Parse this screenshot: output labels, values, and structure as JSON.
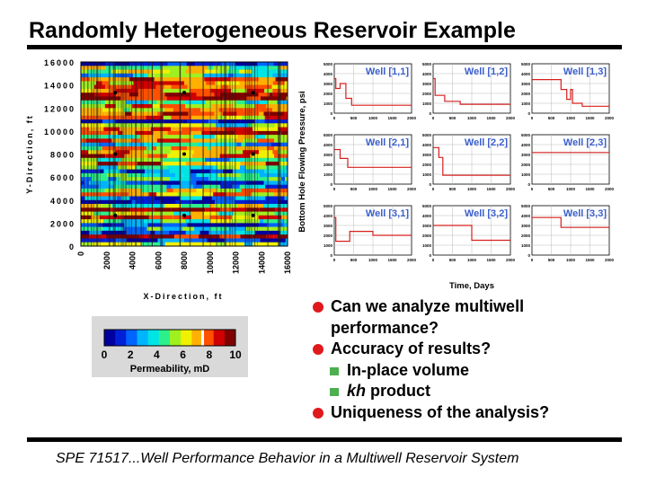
{
  "title": "Randomly Heterogeneous Reservoir Example",
  "footer": "SPE 71517...Well Performance Behavior in a Multiwell Reservoir System",
  "bullets": [
    {
      "lines": [
        "Can we analyze multiwell",
        "performance?"
      ]
    },
    {
      "lines": [
        "Accuracy of results?"
      ]
    },
    {
      "sub": "In-place volume"
    },
    {
      "sub_italic": "kh",
      "sub_rest": " product"
    },
    {
      "lines": [
        "Uniqueness of the analysis?"
      ]
    }
  ],
  "colors": {
    "bullet": "#e0191d",
    "sub_bullet": "#4caf50",
    "curve": "#d6201f"
  },
  "chart_data": [
    {
      "type": "heatmap",
      "xlabel": "X-Direction, ft",
      "ylabel": "Y-Direction, ft",
      "xlim": [
        0,
        16000
      ],
      "ylim": [
        0,
        16000
      ],
      "xticks": [
        "0",
        "2000",
        "4000",
        "6000",
        "8000",
        "10000",
        "12000",
        "14000",
        "16000"
      ],
      "yticks": [
        "0",
        "2000",
        "4000",
        "6000",
        "8000",
        "10000",
        "12000",
        "14000",
        "16000"
      ],
      "colorbar": {
        "label": "Permeability, mD",
        "min": 0,
        "max": 10,
        "ticks": [
          "0",
          "2",
          "4",
          "6",
          "8",
          "10"
        ]
      },
      "wells": [
        {
          "x": 2667,
          "y": 13333
        },
        {
          "x": 8000,
          "y": 13333
        },
        {
          "x": 13333,
          "y": 13333
        },
        {
          "x": 2667,
          "y": 8000
        },
        {
          "x": 8000,
          "y": 8000
        },
        {
          "x": 13333,
          "y": 8000
        },
        {
          "x": 2667,
          "y": 2667
        },
        {
          "x": 8000,
          "y": 2667
        },
        {
          "x": 13333,
          "y": 2667
        }
      ]
    },
    {
      "type": "line",
      "xlabel": "Time, Days",
      "ylabel": "Bottom Hole Flowing Pressure, psi",
      "xlim": [
        0,
        2000
      ],
      "ylim": [
        0,
        5000
      ],
      "xticks": [
        "0",
        "500",
        "1000",
        "1500",
        "2000"
      ],
      "yticks": [
        "0",
        "1000",
        "2000",
        "3000",
        "4000",
        "5000"
      ],
      "panels": [
        {
          "name": "Well [1,1]",
          "x": [
            0,
            40,
            40,
            150,
            150,
            300,
            300,
            450,
            450,
            2000
          ],
          "y": [
            3500,
            3500,
            2500,
            2500,
            3000,
            3000,
            1500,
            1500,
            800,
            800
          ]
        },
        {
          "name": "Well [1,2]",
          "x": [
            0,
            50,
            50,
            300,
            300,
            700,
            700,
            2000
          ],
          "y": [
            3500,
            3500,
            1800,
            1800,
            1200,
            1200,
            900,
            900
          ]
        },
        {
          "name": "Well [1,3]",
          "x": [
            0,
            750,
            750,
            900,
            900,
            1000,
            1000,
            1050,
            1050,
            1300,
            1300,
            2000
          ],
          "y": [
            3400,
            3400,
            2400,
            2400,
            1400,
            1400,
            2400,
            2400,
            1000,
            1000,
            700,
            700
          ]
        },
        {
          "name": "Well [2,1]",
          "x": [
            0,
            150,
            150,
            350,
            350,
            2000
          ],
          "y": [
            3500,
            3500,
            2600,
            2600,
            1700,
            1700
          ]
        },
        {
          "name": "Well [2,2]",
          "x": [
            0,
            150,
            150,
            250,
            250,
            2000
          ],
          "y": [
            3700,
            3700,
            2700,
            2700,
            900,
            900
          ]
        },
        {
          "name": "Well [2,3]",
          "x": [
            0,
            2000
          ],
          "y": [
            3200,
            3200
          ]
        },
        {
          "name": "Well [3,1]",
          "x": [
            0,
            40,
            40,
            400,
            400,
            1000,
            1000,
            2000
          ],
          "y": [
            3800,
            3800,
            1400,
            1400,
            2400,
            2400,
            2000,
            2000
          ]
        },
        {
          "name": "Well [3,2]",
          "x": [
            0,
            1000,
            1000,
            2000
          ],
          "y": [
            3000,
            3000,
            1500,
            1500
          ]
        },
        {
          "name": "Well [3,3]",
          "x": [
            0,
            750,
            750,
            2000
          ],
          "y": [
            3800,
            3800,
            2800,
            2800
          ]
        }
      ]
    }
  ]
}
